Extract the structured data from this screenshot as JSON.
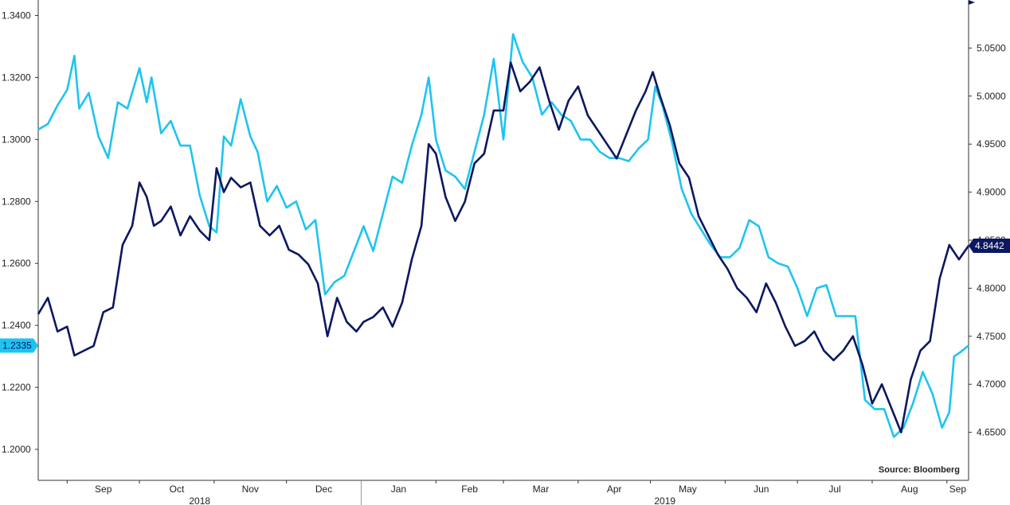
{
  "chart_data": {
    "type": "line",
    "title": "",
    "source": "Source: Bloomberg",
    "colors": {
      "dark_series": "#0b1760",
      "light_series": "#1ec4f0"
    },
    "left_axis": {
      "ylim": [
        1.19,
        1.345
      ],
      "ticks": [
        1.2,
        1.22,
        1.24,
        1.26,
        1.28,
        1.3,
        1.32,
        1.34
      ],
      "tick_labels": [
        "1.2000",
        "1.2200",
        "1.2400",
        "1.2600",
        "1.2800",
        "1.3000",
        "1.3200",
        "1.3400"
      ],
      "last_value_label": "1.2335"
    },
    "right_axis": {
      "ylim": [
        4.6,
        5.1
      ],
      "ticks": [
        4.65,
        4.7,
        4.75,
        4.8,
        4.85,
        4.9,
        4.95,
        5.0,
        5.05
      ],
      "tick_labels": [
        "4.6500",
        "4.7000",
        "4.7500",
        "4.8000",
        "4.8500",
        "4.9000",
        "4.9500",
        "5.0000",
        "5.0500"
      ],
      "last_value_label": "4.8442"
    },
    "x_axis": {
      "range": [
        "2018-08-20",
        "2019-09-10"
      ],
      "months": [
        {
          "label": "Sep",
          "start": "2018-09-01",
          "end": "2018-10-01"
        },
        {
          "label": "Oct",
          "start": "2018-10-01",
          "end": "2018-11-01"
        },
        {
          "label": "Nov",
          "start": "2018-11-01",
          "end": "2018-12-01"
        },
        {
          "label": "Dec",
          "start": "2018-12-01",
          "end": "2019-01-01"
        },
        {
          "label": "Jan",
          "start": "2019-01-01",
          "end": "2019-02-01"
        },
        {
          "label": "Feb",
          "start": "2019-02-01",
          "end": "2019-03-01"
        },
        {
          "label": "Mar",
          "start": "2019-03-01",
          "end": "2019-04-01"
        },
        {
          "label": "Apr",
          "start": "2019-04-01",
          "end": "2019-05-01"
        },
        {
          "label": "May",
          "start": "2019-05-01",
          "end": "2019-06-01"
        },
        {
          "label": "Jun",
          "start": "2019-06-01",
          "end": "2019-07-01"
        },
        {
          "label": "Jul",
          "start": "2019-07-01",
          "end": "2019-08-01"
        },
        {
          "label": "Aug",
          "start": "2019-08-01",
          "end": "2019-09-01"
        },
        {
          "label": "Sep",
          "start": "2019-09-01",
          "end": "2019-09-10"
        }
      ],
      "years": [
        {
          "label": "2018",
          "start": "2018-08-20",
          "end": "2019-01-01"
        },
        {
          "label": "2019",
          "start": "2019-01-01",
          "end": "2019-09-10"
        }
      ]
    },
    "series": [
      {
        "axis": "left",
        "color": "#1ec4f0",
        "points": [
          [
            "2018-08-20",
            1.3032
          ],
          [
            "2018-08-24",
            1.305
          ],
          [
            "2018-08-28",
            1.311
          ],
          [
            "2018-09-01",
            1.316
          ],
          [
            "2018-09-04",
            1.327
          ],
          [
            "2018-09-06",
            1.31
          ],
          [
            "2018-09-10",
            1.315
          ],
          [
            "2018-09-14",
            1.301
          ],
          [
            "2018-09-18",
            1.294
          ],
          [
            "2018-09-22",
            1.312
          ],
          [
            "2018-09-26",
            1.31
          ],
          [
            "2018-10-01",
            1.323
          ],
          [
            "2018-10-04",
            1.312
          ],
          [
            "2018-10-06",
            1.32
          ],
          [
            "2018-10-10",
            1.302
          ],
          [
            "2018-10-14",
            1.306
          ],
          [
            "2018-10-18",
            1.298
          ],
          [
            "2018-10-22",
            1.298
          ],
          [
            "2018-10-26",
            1.282
          ],
          [
            "2018-10-30",
            1.272
          ],
          [
            "2018-11-02",
            1.27
          ],
          [
            "2018-11-05",
            1.301
          ],
          [
            "2018-11-08",
            1.298
          ],
          [
            "2018-11-12",
            1.313
          ],
          [
            "2018-11-16",
            1.301
          ],
          [
            "2018-11-19",
            1.296
          ],
          [
            "2018-11-23",
            1.28
          ],
          [
            "2018-11-27",
            1.285
          ],
          [
            "2018-12-01",
            1.278
          ],
          [
            "2018-12-05",
            1.28
          ],
          [
            "2018-12-09",
            1.271
          ],
          [
            "2018-12-13",
            1.274
          ],
          [
            "2018-12-17",
            1.25
          ],
          [
            "2018-12-21",
            1.254
          ],
          [
            "2018-12-25",
            1.256
          ],
          [
            "2018-12-28",
            1.262
          ],
          [
            "2019-01-02",
            1.272
          ],
          [
            "2019-01-06",
            1.264
          ],
          [
            "2019-01-10",
            1.276
          ],
          [
            "2019-01-14",
            1.288
          ],
          [
            "2019-01-18",
            1.286
          ],
          [
            "2019-01-22",
            1.298
          ],
          [
            "2019-01-26",
            1.308
          ],
          [
            "2019-01-29",
            1.32
          ],
          [
            "2019-02-01",
            1.3
          ],
          [
            "2019-02-05",
            1.29
          ],
          [
            "2019-02-09",
            1.288
          ],
          [
            "2019-02-13",
            1.284
          ],
          [
            "2019-02-17",
            1.296
          ],
          [
            "2019-02-21",
            1.308
          ],
          [
            "2019-02-25",
            1.326
          ],
          [
            "2019-03-01",
            1.3
          ],
          [
            "2019-03-05",
            1.334
          ],
          [
            "2019-03-09",
            1.325
          ],
          [
            "2019-03-13",
            1.32
          ],
          [
            "2019-03-17",
            1.308
          ],
          [
            "2019-03-21",
            1.312
          ],
          [
            "2019-03-25",
            1.308
          ],
          [
            "2019-03-29",
            1.306
          ],
          [
            "2019-04-02",
            1.3
          ],
          [
            "2019-04-06",
            1.3
          ],
          [
            "2019-04-10",
            1.296
          ],
          [
            "2019-04-14",
            1.294
          ],
          [
            "2019-04-18",
            1.294
          ],
          [
            "2019-04-22",
            1.293
          ],
          [
            "2019-04-26",
            1.297
          ],
          [
            "2019-04-30",
            1.3
          ],
          [
            "2019-05-03",
            1.317
          ],
          [
            "2019-05-06",
            1.311
          ],
          [
            "2019-05-10",
            1.299
          ],
          [
            "2019-05-14",
            1.284
          ],
          [
            "2019-05-18",
            1.276
          ],
          [
            "2019-05-22",
            1.271
          ],
          [
            "2019-05-26",
            1.266
          ],
          [
            "2019-05-30",
            1.262
          ],
          [
            "2019-06-03",
            1.262
          ],
          [
            "2019-06-07",
            1.265
          ],
          [
            "2019-06-11",
            1.274
          ],
          [
            "2019-06-15",
            1.272
          ],
          [
            "2019-06-19",
            1.262
          ],
          [
            "2019-06-23",
            1.26
          ],
          [
            "2019-06-27",
            1.259
          ],
          [
            "2019-07-01",
            1.252
          ],
          [
            "2019-07-05",
            1.243
          ],
          [
            "2019-07-09",
            1.252
          ],
          [
            "2019-07-13",
            1.253
          ],
          [
            "2019-07-17",
            1.243
          ],
          [
            "2019-07-21",
            1.243
          ],
          [
            "2019-07-25",
            1.243
          ],
          [
            "2019-07-29",
            1.216
          ],
          [
            "2019-08-02",
            1.213
          ],
          [
            "2019-08-06",
            1.213
          ],
          [
            "2019-08-10",
            1.204
          ],
          [
            "2019-08-14",
            1.207
          ],
          [
            "2019-08-18",
            1.215
          ],
          [
            "2019-08-22",
            1.225
          ],
          [
            "2019-08-26",
            1.218
          ],
          [
            "2019-08-30",
            1.207
          ],
          [
            "2019-09-02",
            1.212
          ],
          [
            "2019-09-04",
            1.23
          ],
          [
            "2019-09-06",
            1.231
          ],
          [
            "2019-09-10",
            1.2335
          ]
        ]
      },
      {
        "axis": "right",
        "color": "#0b1760",
        "points": [
          [
            "2018-08-20",
            4.773
          ],
          [
            "2018-08-24",
            4.79
          ],
          [
            "2018-08-28",
            4.755
          ],
          [
            "2018-09-01",
            4.76
          ],
          [
            "2018-09-04",
            4.73
          ],
          [
            "2018-09-08",
            4.735
          ],
          [
            "2018-09-12",
            4.74
          ],
          [
            "2018-09-16",
            4.775
          ],
          [
            "2018-09-20",
            4.78
          ],
          [
            "2018-09-24",
            4.845
          ],
          [
            "2018-09-28",
            4.865
          ],
          [
            "2018-10-01",
            4.91
          ],
          [
            "2018-10-04",
            4.895
          ],
          [
            "2018-10-07",
            4.865
          ],
          [
            "2018-10-10",
            4.87
          ],
          [
            "2018-10-14",
            4.885
          ],
          [
            "2018-10-18",
            4.855
          ],
          [
            "2018-10-22",
            4.875
          ],
          [
            "2018-10-26",
            4.86
          ],
          [
            "2018-10-30",
            4.85
          ],
          [
            "2018-11-02",
            4.925
          ],
          [
            "2018-11-05",
            4.9
          ],
          [
            "2018-11-08",
            4.915
          ],
          [
            "2018-11-12",
            4.905
          ],
          [
            "2018-11-16",
            4.91
          ],
          [
            "2018-11-20",
            4.865
          ],
          [
            "2018-11-24",
            4.855
          ],
          [
            "2018-11-28",
            4.865
          ],
          [
            "2018-12-02",
            4.84
          ],
          [
            "2018-12-06",
            4.835
          ],
          [
            "2018-12-10",
            4.825
          ],
          [
            "2018-12-14",
            4.805
          ],
          [
            "2018-12-18",
            4.75
          ],
          [
            "2018-12-22",
            4.79
          ],
          [
            "2018-12-26",
            4.765
          ],
          [
            "2018-12-30",
            4.755
          ],
          [
            "2019-01-02",
            4.765
          ],
          [
            "2019-01-06",
            4.77
          ],
          [
            "2019-01-10",
            4.78
          ],
          [
            "2019-01-14",
            4.76
          ],
          [
            "2019-01-18",
            4.785
          ],
          [
            "2019-01-22",
            4.83
          ],
          [
            "2019-01-26",
            4.865
          ],
          [
            "2019-01-29",
            4.95
          ],
          [
            "2019-02-01",
            4.94
          ],
          [
            "2019-02-05",
            4.895
          ],
          [
            "2019-02-09",
            4.87
          ],
          [
            "2019-02-13",
            4.89
          ],
          [
            "2019-02-17",
            4.93
          ],
          [
            "2019-02-21",
            4.94
          ],
          [
            "2019-02-25",
            4.985
          ],
          [
            "2019-03-01",
            4.985
          ],
          [
            "2019-03-04",
            5.035
          ],
          [
            "2019-03-08",
            5.005
          ],
          [
            "2019-03-12",
            5.015
          ],
          [
            "2019-03-16",
            5.03
          ],
          [
            "2019-03-20",
            4.995
          ],
          [
            "2019-03-24",
            4.965
          ],
          [
            "2019-03-28",
            4.995
          ],
          [
            "2019-04-01",
            5.01
          ],
          [
            "2019-04-05",
            4.98
          ],
          [
            "2019-04-09",
            4.965
          ],
          [
            "2019-04-13",
            4.95
          ],
          [
            "2019-04-17",
            4.935
          ],
          [
            "2019-04-21",
            4.96
          ],
          [
            "2019-04-25",
            4.985
          ],
          [
            "2019-04-29",
            5.005
          ],
          [
            "2019-05-02",
            5.025
          ],
          [
            "2019-05-05",
            5.0
          ],
          [
            "2019-05-09",
            4.97
          ],
          [
            "2019-05-13",
            4.93
          ],
          [
            "2019-05-17",
            4.915
          ],
          [
            "2019-05-21",
            4.875
          ],
          [
            "2019-05-25",
            4.855
          ],
          [
            "2019-05-29",
            4.835
          ],
          [
            "2019-06-02",
            4.82
          ],
          [
            "2019-06-06",
            4.8
          ],
          [
            "2019-06-10",
            4.79
          ],
          [
            "2019-06-14",
            4.775
          ],
          [
            "2019-06-18",
            4.805
          ],
          [
            "2019-06-22",
            4.785
          ],
          [
            "2019-06-26",
            4.76
          ],
          [
            "2019-06-30",
            4.74
          ],
          [
            "2019-07-04",
            4.745
          ],
          [
            "2019-07-08",
            4.755
          ],
          [
            "2019-07-12",
            4.735
          ],
          [
            "2019-07-16",
            4.725
          ],
          [
            "2019-07-20",
            4.735
          ],
          [
            "2019-07-24",
            4.75
          ],
          [
            "2019-07-28",
            4.72
          ],
          [
            "2019-08-01",
            4.68
          ],
          [
            "2019-08-05",
            4.7
          ],
          [
            "2019-08-09",
            4.675
          ],
          [
            "2019-08-13",
            4.65
          ],
          [
            "2019-08-17",
            4.705
          ],
          [
            "2019-08-21",
            4.735
          ],
          [
            "2019-08-25",
            4.745
          ],
          [
            "2019-08-29",
            4.81
          ],
          [
            "2019-09-02",
            4.845
          ],
          [
            "2019-09-06",
            4.83
          ],
          [
            "2019-09-10",
            4.8442
          ]
        ]
      }
    ]
  }
}
